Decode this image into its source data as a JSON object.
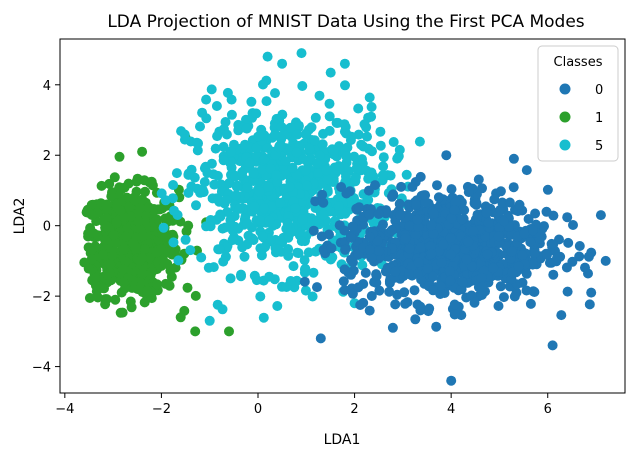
{
  "chart_data": {
    "type": "scatter",
    "title": "LDA Projection of MNIST Data Using the First PCA Modes",
    "xlabel": "LDA1",
    "ylabel": "LDA2",
    "xlim": [
      -4.1,
      7.6
    ],
    "ylim": [
      -4.75,
      5.3
    ],
    "xticks": [
      -4,
      -2,
      0,
      2,
      4,
      6
    ],
    "yticks": [
      -4,
      -2,
      0,
      2,
      4
    ],
    "grid": false,
    "legend": {
      "title": "Classes",
      "position": "top-right"
    },
    "series": [
      {
        "name": "0",
        "color": "#1f77b4",
        "cluster": {
          "center": [
            3.9,
            -0.55
          ],
          "spread": [
            1.05,
            0.78
          ],
          "count": 950,
          "x_range": [
            0.6,
            7.3
          ],
          "y_range": [
            -4.4,
            2.1
          ]
        },
        "points": [
          {
            "x": 4.0,
            "y": -4.4
          },
          {
            "x": 7.2,
            "y": -1.0
          },
          {
            "x": 6.9,
            "y": -1.9
          },
          {
            "x": 5.3,
            "y": 1.9
          },
          {
            "x": 3.9,
            "y": 2.0
          },
          {
            "x": 6.1,
            "y": -3.4
          },
          {
            "x": 1.3,
            "y": -3.2
          },
          {
            "x": 7.1,
            "y": 0.3
          }
        ]
      },
      {
        "name": "1",
        "color": "#2ca02c",
        "cluster": {
          "center": [
            -2.65,
            -0.5
          ],
          "spread": [
            0.5,
            0.75
          ],
          "count": 650,
          "x_range": [
            -3.6,
            -0.4
          ],
          "y_range": [
            -3.0,
            2.6
          ]
        },
        "points": [
          {
            "x": -1.3,
            "y": -3.0
          },
          {
            "x": -0.6,
            "y": -3.0
          },
          {
            "x": -1.6,
            "y": -2.6
          },
          {
            "x": -1.5,
            "y": 2.5
          },
          {
            "x": -2.4,
            "y": 2.1
          }
        ]
      },
      {
        "name": "5",
        "color": "#17becf",
        "cluster": {
          "center": [
            0.6,
            1.0
          ],
          "spread": [
            1.05,
            1.15
          ],
          "count": 800,
          "x_range": [
            -2.0,
            3.4
          ],
          "y_range": [
            -2.7,
            4.9
          ]
        },
        "points": [
          {
            "x": 0.2,
            "y": 4.8
          },
          {
            "x": 0.9,
            "y": 4.9
          },
          {
            "x": 0.5,
            "y": 4.6
          },
          {
            "x": -1.0,
            "y": -2.7
          },
          {
            "x": 2.0,
            "y": -2.2
          },
          {
            "x": 1.8,
            "y": 4.6
          }
        ]
      }
    ]
  }
}
